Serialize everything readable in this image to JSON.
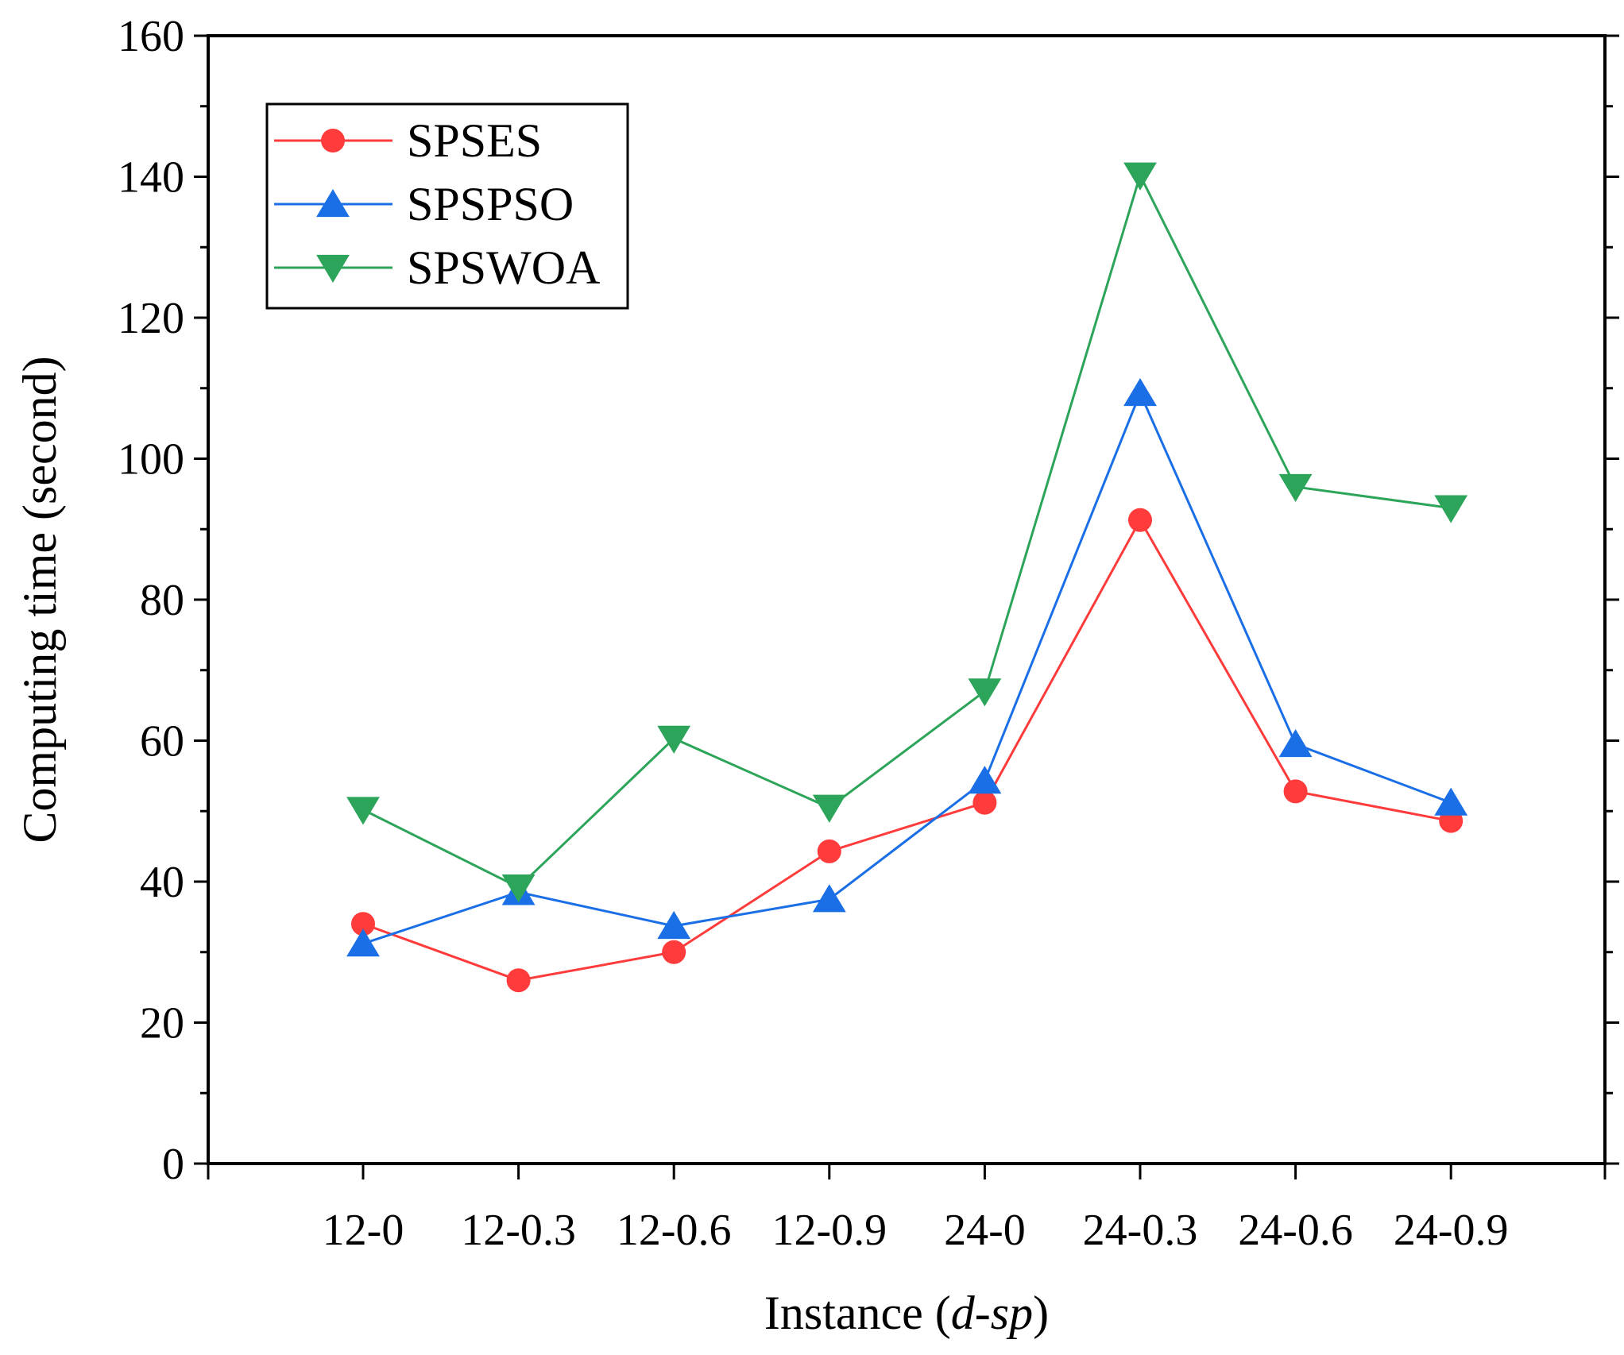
{
  "chart_data": {
    "type": "line",
    "title": "",
    "xlabel_prefix": "Instance (",
    "xlabel_italic": "d-sp",
    "xlabel_suffix": ")",
    "ylabel": "Computing time (second)",
    "categories": [
      "12-0",
      "12-0.3",
      "12-0.6",
      "12-0.9",
      "24-0",
      "24-0.3",
      "24-0.6",
      "24-0.9"
    ],
    "ylim": [
      0,
      160
    ],
    "yticks": [
      0,
      20,
      40,
      60,
      80,
      100,
      120,
      140,
      160
    ],
    "ytick_labels": [
      "0",
      "20",
      "40",
      "60",
      "80",
      "100",
      "120",
      "140",
      "160"
    ],
    "grid": false,
    "legend_position": "top-left",
    "series": [
      {
        "name": "SPSES",
        "color": "#ff3b3b",
        "marker": "circle",
        "values": [
          34,
          26,
          30,
          44.3,
          51.2,
          91.3,
          52.8,
          48.6
        ]
      },
      {
        "name": "SPSPSO",
        "color": "#1a6fe6",
        "marker": "triangle-up",
        "values": [
          31.2,
          38.5,
          33.7,
          37.5,
          54.3,
          109.3,
          59.5,
          51.2
        ]
      },
      {
        "name": "SPSWOA",
        "color": "#2ca55a",
        "marker": "triangle-down",
        "values": [
          50.2,
          39.2,
          60.3,
          50.5,
          67,
          140.2,
          96,
          93
        ]
      }
    ]
  }
}
